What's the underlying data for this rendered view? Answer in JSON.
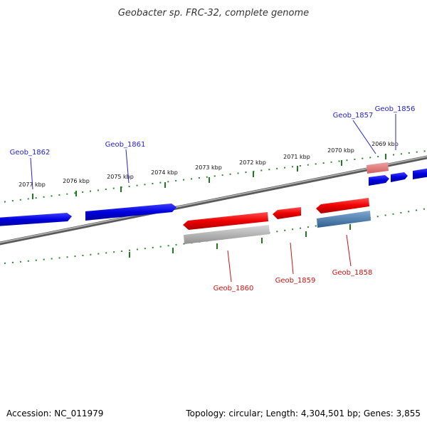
{
  "header": {
    "title": "Geobacter sp. FRC-32, complete genome"
  },
  "footer": {
    "accession": "Accession: NC_011979",
    "summary": "Topology: circular; Length: 4,304,501 bp; Genes: 3,855"
  },
  "ruler_labels": [
    "2077 kbp",
    "2076 kbp",
    "2075 kbp",
    "2074 kbp",
    "2073 kbp",
    "2072 kbp",
    "2071 kbp",
    "2070 kbp",
    "2069 kbp"
  ],
  "genes": {
    "top_strand": [
      "Geob_1862",
      "Geob_1861",
      "Geob_1857",
      "Geob_1856"
    ],
    "bottom_strand": [
      "Geob_1860",
      "Geob_1859",
      "Geob_1858"
    ]
  },
  "colors": {
    "forward_gene": "#1010e0",
    "reverse_gene": "#e01010",
    "rna_gene": "#e88080",
    "pseudo_gene": "#4a7fb0",
    "shadow_gene": "#a0a0a0",
    "backbone": "#777777",
    "ruler": "#2a7a2a"
  }
}
